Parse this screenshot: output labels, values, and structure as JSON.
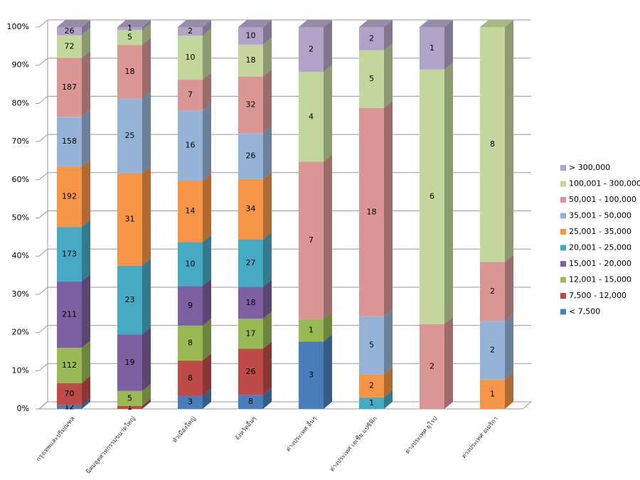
{
  "chart_data": {
    "type": "stacked_percent_bar_3d",
    "categories": [
      "กรุงเทพและปริมณฑล",
      "นิคมอุตสาหกรรมขนาดใหญ่",
      "หัวเมืองใหญ่",
      "จังหวัดอื่นๆ",
      "ต่างประเทศ อื่นๆ",
      "ต่างประเทศ เอเชีย แปซิฟิก",
      "ต่างประเทศ ยุโรป",
      "ต่างประเทศ อเมริกา"
    ],
    "series": [
      {
        "name": "< 7,500",
        "color": "#4a7ebb",
        "values": [
          12,
          0,
          3,
          8,
          3,
          0,
          0,
          0
        ]
      },
      {
        "name": "7,500 - 12,000",
        "color": "#be4b48",
        "values": [
          70,
          1,
          8,
          26,
          0,
          0,
          0,
          0
        ]
      },
      {
        "name": "12,001 - 15,000",
        "color": "#98b954",
        "values": [
          112,
          5,
          8,
          17,
          1,
          0,
          0,
          0
        ]
      },
      {
        "name": "15,001 - 20,000",
        "color": "#7d60a0",
        "values": [
          211,
          19,
          9,
          18,
          0,
          0,
          0,
          0
        ]
      },
      {
        "name": "20,001 - 25,000",
        "color": "#46aac5",
        "values": [
          173,
          23,
          10,
          27,
          0,
          1,
          0,
          0
        ]
      },
      {
        "name": "25,001 - 35,000",
        "color": "#f69545",
        "values": [
          192,
          31,
          14,
          34,
          0,
          2,
          0,
          1
        ]
      },
      {
        "name": "35,001 - 50,000",
        "color": "#95b3d7",
        "values": [
          158,
          25,
          16,
          26,
          0,
          5,
          0,
          2
        ]
      },
      {
        "name": "50,001 - 100,000",
        "color": "#d99694",
        "values": [
          187,
          18,
          7,
          32,
          7,
          18,
          2,
          2
        ]
      },
      {
        "name": "100,001 - 300,000",
        "color": "#c3d69b",
        "values": [
          72,
          5,
          10,
          18,
          4,
          5,
          6,
          8
        ]
      },
      {
        "name": "> 300,000",
        "color": "#b3a2c7",
        "values": [
          26,
          1,
          2,
          10,
          2,
          2,
          1,
          0
        ]
      }
    ],
    "ylim": [
      0,
      100
    ],
    "yticks": [
      {
        "value": 0,
        "label": "0%"
      },
      {
        "value": 10,
        "label": "10%"
      },
      {
        "value": 20,
        "label": "20%"
      },
      {
        "value": 30,
        "label": "30%"
      },
      {
        "value": 40,
        "label": "40%"
      },
      {
        "value": 50,
        "label": "50%"
      },
      {
        "value": 60,
        "label": "60%"
      },
      {
        "value": 70,
        "label": "70%"
      },
      {
        "value": 80,
        "label": "80%"
      },
      {
        "value": 90,
        "label": "90%"
      },
      {
        "value": 100,
        "label": "100%"
      }
    ],
    "grid": true,
    "legend": "right"
  }
}
